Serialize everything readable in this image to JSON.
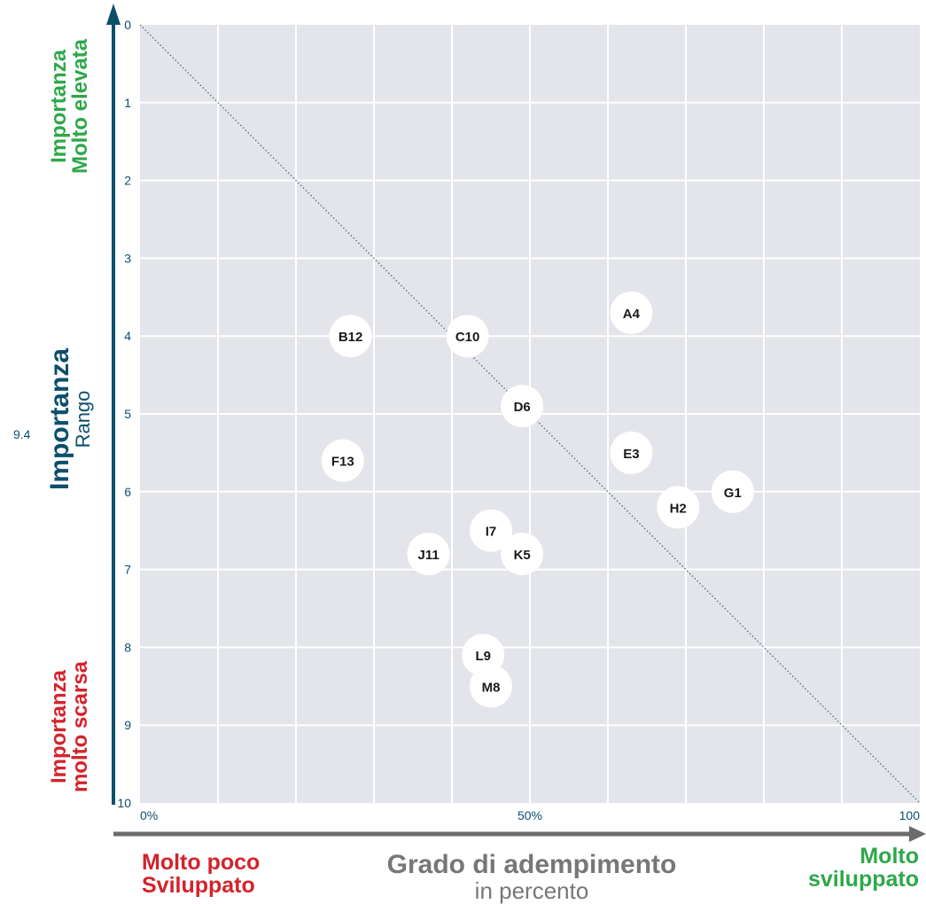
{
  "chart_data": {
    "type": "scatter",
    "title": "",
    "x_range": [
      0,
      100
    ],
    "y_range": [
      0,
      10
    ],
    "y_inverted": true,
    "y_ticks": [
      0,
      1,
      2,
      3,
      4,
      5,
      6,
      7,
      8,
      9,
      10
    ],
    "x_tick_labels": [
      "0%",
      "50%",
      "100"
    ],
    "x_tick_values": [
      0,
      50,
      100
    ],
    "y_extra_label": "9.4",
    "grid": true,
    "reference_line": {
      "from": [
        0,
        0
      ],
      "to": [
        100,
        10
      ],
      "style": "dotted"
    },
    "points": [
      {
        "label": "A4",
        "x": 63,
        "y": 3.7
      },
      {
        "label": "B12",
        "x": 27,
        "y": 4.0
      },
      {
        "label": "C10",
        "x": 42,
        "y": 4.0
      },
      {
        "label": "D6",
        "x": 49,
        "y": 4.9
      },
      {
        "label": "E3",
        "x": 63,
        "y": 5.5
      },
      {
        "label": "F13",
        "x": 26,
        "y": 5.6
      },
      {
        "label": "G1",
        "x": 76,
        "y": 6.0
      },
      {
        "label": "H2",
        "x": 69,
        "y": 6.2
      },
      {
        "label": "I7",
        "x": 45,
        "y": 6.5
      },
      {
        "label": "J11",
        "x": 37,
        "y": 6.8
      },
      {
        "label": "K5",
        "x": 49,
        "y": 6.8
      },
      {
        "label": "L9",
        "x": 44,
        "y": 8.1
      },
      {
        "label": "M8",
        "x": 45,
        "y": 8.5
      }
    ],
    "ylabel": {
      "main": "Importanza",
      "sub": "Rango"
    },
    "ylabel_top": {
      "line1": "Importanza",
      "line2": "Molto elevata"
    },
    "ylabel_bottom": {
      "line1": "Importanza",
      "line2": "molto scarsa"
    },
    "xlabel": {
      "main": "Grado di adempimento",
      "sub": "in percento"
    },
    "xlabel_left": {
      "line1": "Molto poco",
      "line2": "Sviluppato"
    },
    "xlabel_right": {
      "line1": "Molto",
      "line2": "sviluppato"
    }
  },
  "colors": {
    "plot_bg": "#e3e5ea",
    "grid": "#ffffff",
    "axis_blue": "#0b4f6c",
    "axis_grey": "#6b6b6b",
    "green": "#2ea84a",
    "red": "#d4232b",
    "point_fill": "#ffffff"
  }
}
